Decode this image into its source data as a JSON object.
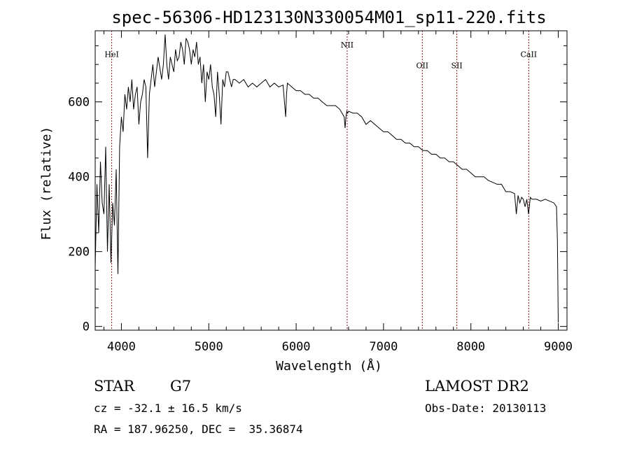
{
  "chart_data": {
    "type": "line",
    "title": "spec-56306-HD123130N330054M01_sp11-220.fits",
    "xlabel": "Wavelength (Å)",
    "ylabel": "Flux (relative)",
    "xlim": [
      3700,
      9100
    ],
    "ylim": [
      -10,
      790
    ],
    "xticks": [
      4000,
      5000,
      6000,
      7000,
      8000,
      9000
    ],
    "yticks": [
      0,
      200,
      400,
      600
    ],
    "grid": false,
    "legend": "none",
    "line_color": "#000000",
    "marker_color": "#8b1a1a",
    "series": [
      {
        "x": [
          3700,
          3720,
          3740,
          3760,
          3780,
          3800,
          3820,
          3840,
          3860,
          3880,
          3900,
          3920,
          3940,
          3960,
          3980,
          4000,
          4020,
          4040,
          4060,
          4080,
          4100,
          4120,
          4140,
          4160,
          4180,
          4200,
          4220,
          4240,
          4260,
          4280,
          4300,
          4320,
          4340,
          4360,
          4380,
          4400,
          4420,
          4440,
          4460,
          4480,
          4500,
          4520,
          4540,
          4560,
          4580,
          4600,
          4620,
          4640,
          4660,
          4680,
          4700,
          4720,
          4740,
          4760,
          4780,
          4800,
          4820,
          4840,
          4860,
          4880,
          4900,
          4920,
          4940,
          4960,
          4980,
          5000,
          5020,
          5040,
          5060,
          5080,
          5100,
          5120,
          5140,
          5160,
          5180,
          5200,
          5220,
          5240,
          5260,
          5280,
          5300,
          5350,
          5400,
          5450,
          5500,
          5550,
          5600,
          5650,
          5700,
          5750,
          5800,
          5850,
          5880,
          5890,
          5900,
          5950,
          6000,
          6050,
          6100,
          6150,
          6200,
          6250,
          6300,
          6350,
          6400,
          6450,
          6500,
          6550,
          6560,
          6570,
          6580,
          6590,
          6600,
          6650,
          6700,
          6750,
          6800,
          6850,
          6900,
          6950,
          7000,
          7050,
          7100,
          7150,
          7200,
          7250,
          7300,
          7350,
          7400,
          7450,
          7500,
          7550,
          7600,
          7650,
          7700,
          7750,
          7800,
          7850,
          7900,
          7950,
          8000,
          8050,
          8100,
          8150,
          8200,
          8250,
          8300,
          8350,
          8400,
          8450,
          8500,
          8520,
          8540,
          8560,
          8580,
          8600,
          8620,
          8640,
          8660,
          8680,
          8700,
          8750,
          8800,
          8850,
          8900,
          8950,
          8980,
          8990,
          9000
        ],
        "y": [
          160,
          380,
          250,
          440,
          330,
          300,
          480,
          200,
          380,
          170,
          330,
          270,
          420,
          140,
          480,
          560,
          520,
          620,
          580,
          640,
          600,
          660,
          580,
          620,
          640,
          540,
          600,
          620,
          660,
          640,
          450,
          620,
          660,
          700,
          640,
          680,
          720,
          690,
          660,
          700,
          780,
          700,
          660,
          720,
          700,
          680,
          740,
          710,
          720,
          760,
          740,
          700,
          770,
          760,
          740,
          700,
          740,
          720,
          760,
          700,
          720,
          650,
          700,
          600,
          680,
          660,
          700,
          640,
          620,
          560,
          680,
          620,
          540,
          660,
          640,
          680,
          680,
          660,
          640,
          660,
          660,
          650,
          660,
          640,
          650,
          640,
          650,
          660,
          640,
          650,
          640,
          645,
          560,
          620,
          650,
          640,
          630,
          630,
          620,
          620,
          610,
          610,
          600,
          590,
          590,
          590,
          580,
          560,
          530,
          560,
          575,
          570,
          575,
          570,
          570,
          560,
          540,
          550,
          540,
          530,
          520,
          520,
          510,
          500,
          500,
          490,
          490,
          480,
          480,
          470,
          470,
          460,
          460,
          450,
          450,
          440,
          440,
          430,
          420,
          420,
          410,
          400,
          400,
          400,
          390,
          385,
          380,
          380,
          360,
          360,
          355,
          300,
          350,
          330,
          345,
          340,
          320,
          340,
          300,
          345,
          340,
          340,
          335,
          340,
          335,
          330,
          320,
          230,
          10
        ]
      }
    ],
    "annotations": [
      {
        "label": "HeI",
        "x": 3889,
        "label_y": 720
      },
      {
        "label": "NII",
        "x": 6584,
        "label_y": 745
      },
      {
        "label": "OII",
        "x": 7444,
        "label_y": 690
      },
      {
        "label": "SII",
        "x": 7839,
        "label_y": 690
      },
      {
        "label": "CaII",
        "x": 8662,
        "label_y": 720
      }
    ]
  },
  "footer": {
    "object": "STAR",
    "subclass": "G7",
    "survey": "LAMOST DR2",
    "cz": "cz = -32.1 ± 16.5 km/s",
    "obs_date": "Obs-Date: 20130113",
    "radec": "RA = 187.96250, DEC =  35.36874"
  }
}
